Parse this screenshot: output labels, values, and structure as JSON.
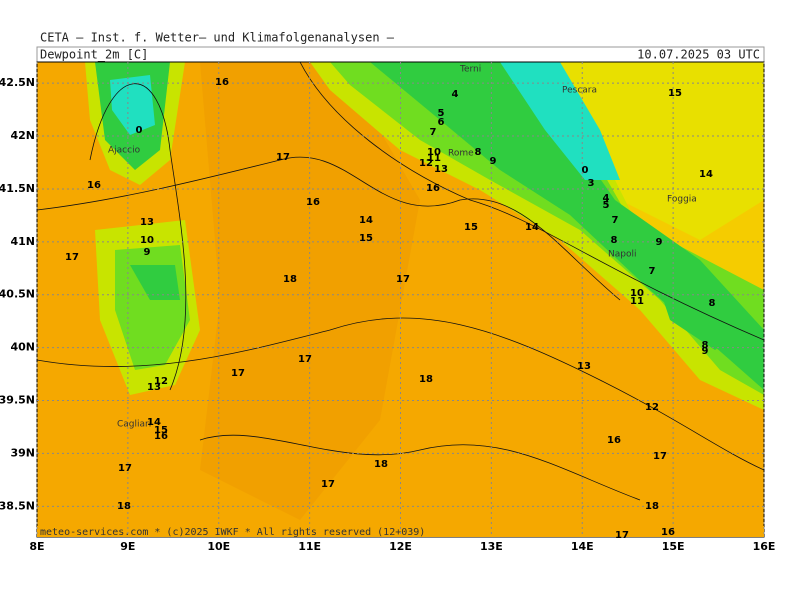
{
  "header": {
    "institute": "CETA — Inst. f. Wetter— und Klimafolgenanalysen —",
    "variable": "Dewpoint_2m [C]",
    "valid_time": "10.07.2025 03 UTC",
    "footer": "meteo-services.com * (c)2025 IWKF * All rights reserved (12+039)"
  },
  "map": {
    "lonlim": [
      8,
      16
    ],
    "latlim": [
      38.21,
      42.7
    ],
    "lon_ticks": [
      {
        "value": 8,
        "label": "8E"
      },
      {
        "value": 9,
        "label": "9E"
      },
      {
        "value": 10,
        "label": "10E"
      },
      {
        "value": 11,
        "label": "11E"
      },
      {
        "value": 12,
        "label": "12E"
      },
      {
        "value": 13,
        "label": "13E"
      },
      {
        "value": 14,
        "label": "14E"
      },
      {
        "value": 15,
        "label": "15E"
      },
      {
        "value": 16,
        "label": "16E"
      }
    ],
    "lat_ticks": [
      {
        "value": 38.5,
        "label": "38.5N"
      },
      {
        "value": 39,
        "label": "39N"
      },
      {
        "value": 39.5,
        "label": "39.5N"
      },
      {
        "value": 40,
        "label": "40N"
      },
      {
        "value": 40.5,
        "label": "40.5N"
      },
      {
        "value": 41,
        "label": "41N"
      },
      {
        "value": 41.5,
        "label": "41.5N"
      },
      {
        "value": 42,
        "label": "42N"
      },
      {
        "value": 42.5,
        "label": "42.5N"
      }
    ],
    "cities": [
      "Terni",
      "Pescara",
      "Rome",
      "Foggia",
      "Napoli",
      "Ajaccio",
      "Cagliari"
    ],
    "contour_labels": [
      16,
      4,
      5,
      6,
      7,
      10,
      11,
      12,
      13,
      8,
      9,
      16,
      17,
      16,
      14,
      15,
      15,
      14,
      15,
      14,
      7,
      8,
      9,
      7,
      10,
      11,
      8,
      8,
      9,
      18,
      17,
      17,
      17,
      18,
      13,
      12,
      16,
      17,
      18,
      17,
      17,
      18,
      18,
      17,
      16,
      17,
      16,
      0,
      9,
      10,
      13,
      12,
      13,
      14,
      15,
      16,
      0,
      3,
      4,
      5
    ]
  }
}
